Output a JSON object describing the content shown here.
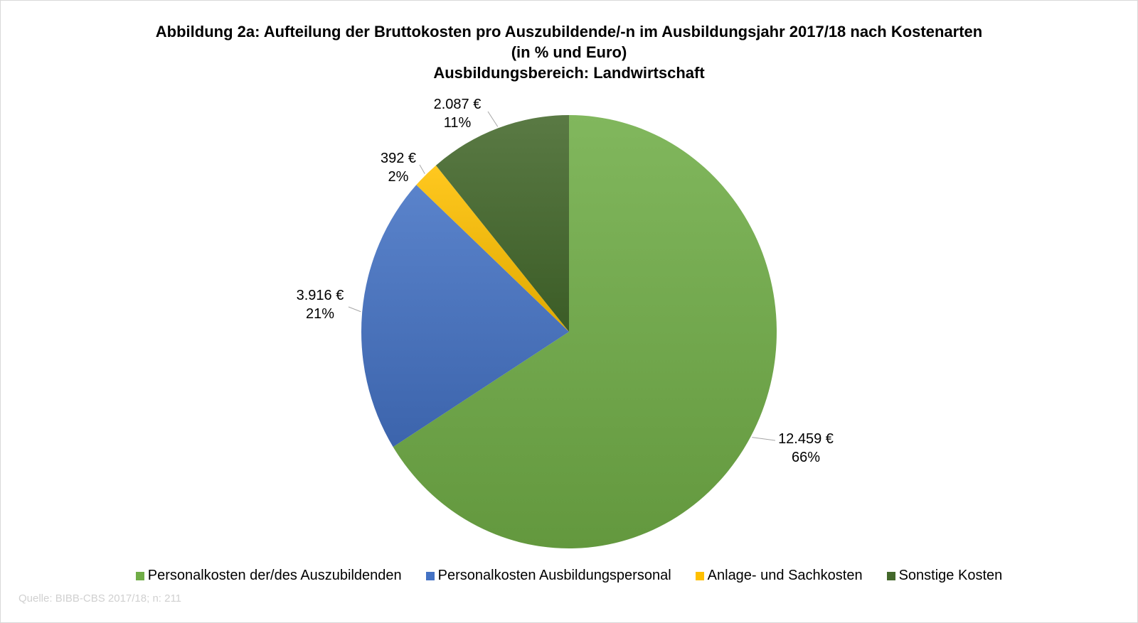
{
  "chart_data": {
    "type": "pie",
    "title": "Abbildung 2a: Aufteilung der Bruttokosten pro Auszubildende/-n im Ausbildungsjahr 2017/18 nach Kostenarten",
    "subtitle": "(in % und Euro)",
    "subtitle2": "Ausbildungsbereich: Landwirtschaft",
    "slices": [
      {
        "name": "Personalkosten der/des Auszubildenden",
        "value": 12459,
        "value_label": "12.459 €",
        "percent_label": "66%",
        "color": "#70ad47"
      },
      {
        "name": "Personalkosten Ausbildungspersonal",
        "value": 3916,
        "value_label": "3.916 €",
        "percent_label": "21%",
        "color": "#4472c4"
      },
      {
        "name": "Anlage- und Sachkosten",
        "value": 392,
        "value_label": "392 €",
        "percent_label": "2%",
        "color": "#ffc000"
      },
      {
        "name": "Sonstige Kosten",
        "value": 2087,
        "value_label": "2.087 €",
        "percent_label": "11%",
        "color": "#43682b"
      }
    ],
    "legend_position": "bottom",
    "start_angle": "12 o'clock",
    "direction": "clockwise"
  },
  "source": "Quelle: BIBB-CBS 2017/18; n: 211"
}
